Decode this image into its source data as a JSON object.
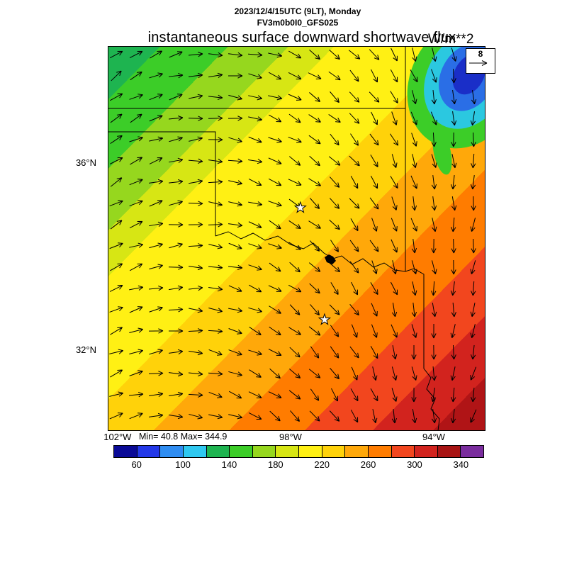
{
  "header": {
    "datetime": "2023/12/4/15UTC (9LT), Monday",
    "model_run": "FV3m0b0I0_GFS025"
  },
  "title": {
    "text": "instantaneous surface downward shortwave flux",
    "units": "W/m**2"
  },
  "stats": {
    "min_max": "Min= 40.8 Max= 344.9"
  },
  "wind_reference": {
    "label": "8"
  },
  "axes": {
    "y_ticks": [
      {
        "label": "36°N",
        "f": 0.304
      },
      {
        "label": "32°N",
        "f": 0.79
      }
    ],
    "x_ticks": [
      {
        "label": "102°W",
        "f": 0.026
      },
      {
        "label": "98°W",
        "f": 0.484
      },
      {
        "label": "94°W",
        "f": 0.863
      }
    ]
  },
  "colorbar": {
    "levels": [
      40,
      60,
      80,
      100,
      120,
      140,
      160,
      180,
      200,
      220,
      240,
      260,
      280,
      300,
      320,
      340,
      360
    ],
    "colors": [
      "#0a0a96",
      "#2338e8",
      "#2f8df2",
      "#2fc8f0",
      "#1eb450",
      "#3ccd28",
      "#96d71e",
      "#d7e614",
      "#fff014",
      "#ffd20a",
      "#ffa80a",
      "#ff7c00",
      "#f2461e",
      "#d2231e",
      "#a81414",
      "#7a2d9e"
    ],
    "ticks": [
      {
        "label": "60",
        "f": 0.0625
      },
      {
        "label": "100",
        "f": 0.1875
      },
      {
        "label": "140",
        "f": 0.3125
      },
      {
        "label": "180",
        "f": 0.4375
      },
      {
        "label": "220",
        "f": 0.5625
      },
      {
        "label": "260",
        "f": 0.6875
      },
      {
        "label": "300",
        "f": 0.8125
      },
      {
        "label": "340",
        "f": 0.9375
      }
    ]
  },
  "map": {
    "bands": [
      {
        "end": 0.07,
        "color": "#1eb450"
      },
      {
        "end": 0.16,
        "color": "#3ccd28"
      },
      {
        "end": 0.24,
        "color": "#96d71e"
      },
      {
        "end": 0.3,
        "color": "#d7e614"
      },
      {
        "end": 0.46,
        "color": "#fff014"
      },
      {
        "end": 0.56,
        "color": "#ffd20a"
      },
      {
        "end": 0.66,
        "color": "#ffa80a"
      },
      {
        "end": 0.76,
        "color": "#ff7c00"
      },
      {
        "end": 0.85,
        "color": "#f2461e"
      },
      {
        "end": 0.93,
        "color": "#d2231e"
      },
      {
        "end": 1.0,
        "color": "#b01416"
      }
    ],
    "low_pocket_colors": [
      "#3ccd28",
      "#2bc8e0",
      "#2a6ee6",
      "#1a2ec8"
    ],
    "markers": [
      {
        "x": 0.51,
        "y": 0.42
      },
      {
        "x": 0.574,
        "y": 0.711
      }
    ]
  },
  "chart_data": {
    "type": "heatmap",
    "title": "instantaneous surface downward shortwave flux",
    "units": "W/m**2",
    "valid_time": "2023/12/4/15UTC (9LT), Monday",
    "model": "FV3m0b0I0_GFS025",
    "min": 40.8,
    "max": 344.9,
    "colorbar_levels": [
      40,
      60,
      80,
      100,
      120,
      140,
      160,
      180,
      200,
      220,
      240,
      260,
      280,
      300,
      320,
      340,
      360
    ],
    "colorbar_tick_labels": [
      "60",
      "100",
      "140",
      "180",
      "220",
      "260",
      "300",
      "340"
    ],
    "lat_ticks": [
      "36°N",
      "32°N"
    ],
    "lon_ticks": [
      "102°W",
      "98°W",
      "94°W"
    ],
    "wind_reference_value": 8,
    "region": "Oklahoma / north Texas (approx 102W-94W, 31N-38N)",
    "pattern": "flux increases along NW-to-SE diagonal bands: ~140 W/m**2 (green) in the northwest, broad yellow ~180-220 through the middle, orange ~260, red to dark red ~300-340 in the southeast corner; a low-flux pocket of ~60-100 W/m**2 (blue/cyan core ringed by green) sits in the northeast corner; wind vector arrows overlaid on a regular grid, turning from northeasterly-pointing in the west to southward-pointing in the east"
  }
}
